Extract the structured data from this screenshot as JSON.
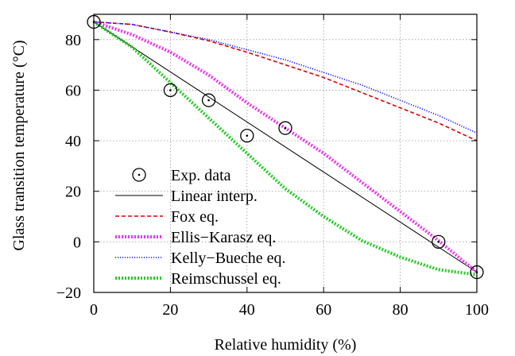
{
  "chart_data": {
    "type": "line",
    "xlabel": "Relative humidity (%)",
    "ylabel": "Glass transition temperature (°C)",
    "xlim": [
      0,
      100
    ],
    "ylim": [
      -20,
      90
    ],
    "x_ticks": [
      0,
      20,
      40,
      60,
      80,
      100
    ],
    "y_ticks": [
      -20,
      0,
      20,
      40,
      60,
      80
    ],
    "grid": true,
    "legend_position": "bottom-left",
    "series": [
      {
        "name": "Exp. data",
        "kind": "scatter",
        "marker": "circle-dot",
        "color": "#000000",
        "points": [
          [
            0,
            87
          ],
          [
            20,
            60
          ],
          [
            30,
            56
          ],
          [
            40,
            42
          ],
          [
            50,
            45
          ],
          [
            90,
            0
          ],
          [
            100,
            -12
          ]
        ]
      },
      {
        "name": "Linear interp.",
        "kind": "line",
        "color": "#000000",
        "dash": "solid",
        "width": 1,
        "x": [
          0,
          100
        ],
        "y": [
          87,
          -12
        ]
      },
      {
        "name": "Fox eq.",
        "kind": "line",
        "color": "#e00000",
        "dash": "dashed",
        "width": 1.6,
        "x": [
          0,
          10,
          20,
          30,
          40,
          50,
          60,
          70,
          80,
          90,
          100
        ],
        "y": [
          87,
          86,
          83,
          79.5,
          75,
          70,
          65,
          59,
          53,
          47,
          40
        ]
      },
      {
        "name": "Ellis−Karasz eq.",
        "kind": "line",
        "color": "#ee33ee",
        "dash": "dotted-thick",
        "width": 4,
        "x": [
          0,
          10,
          20,
          30,
          40,
          50,
          60,
          70,
          80,
          90,
          100
        ],
        "y": [
          87,
          82,
          75,
          66,
          55,
          45,
          35,
          23.5,
          12,
          0.5,
          -12
        ]
      },
      {
        "name": "Kelly−Bueche eq.",
        "kind": "line",
        "color": "#1010ff",
        "dash": "dotted",
        "width": 1.6,
        "x": [
          0,
          10,
          20,
          30,
          40,
          50,
          60,
          70,
          80,
          90,
          100
        ],
        "y": [
          87,
          86,
          83,
          80,
          76,
          72,
          67,
          62,
          56,
          50,
          43
        ]
      },
      {
        "name": "Reimschussel eq.",
        "kind": "line",
        "color": "#22cc22",
        "dash": "dotted-thick",
        "width": 4,
        "x": [
          0,
          10,
          20,
          30,
          40,
          50,
          60,
          70,
          80,
          90,
          100
        ],
        "y": [
          87,
          77,
          63,
          49,
          35,
          21,
          10,
          0.5,
          -6,
          -11,
          -13
        ]
      }
    ]
  }
}
